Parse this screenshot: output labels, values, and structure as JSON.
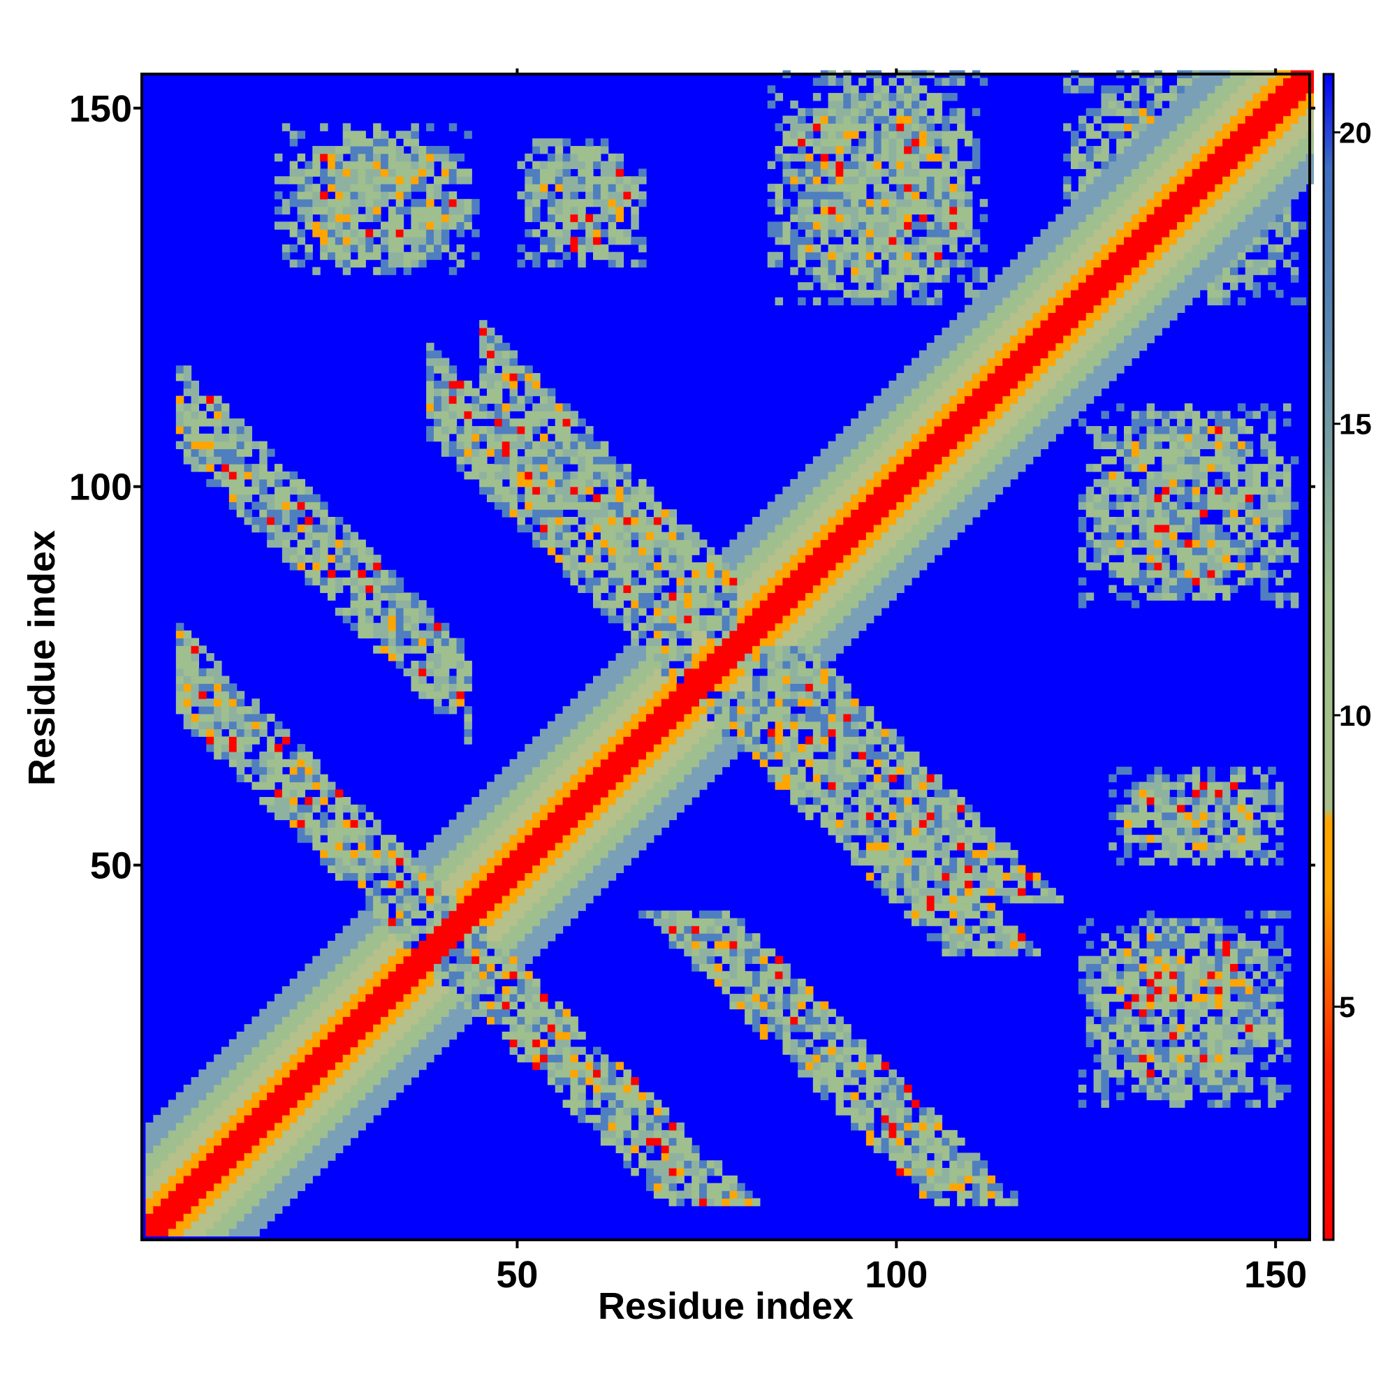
{
  "chart_data": {
    "type": "heatmap",
    "title": "",
    "xlabel": "Residue index",
    "ylabel": "Residue index",
    "xlim": [
      1,
      154
    ],
    "ylim": [
      1,
      154
    ],
    "n_residues": 154,
    "x_ticks": [
      50,
      100,
      150
    ],
    "y_ticks": [
      50,
      100,
      150
    ],
    "x_tick_labels": [
      "50",
      "100",
      "150"
    ],
    "y_tick_labels": [
      "50",
      "100",
      "150"
    ],
    "colorbar": {
      "range": [
        1,
        21
      ],
      "ticks": [
        5,
        10,
        15,
        20
      ],
      "tick_labels": [
        "5",
        "10",
        "15",
        "20"
      ],
      "colors": [
        "#ff0000",
        "#ffa500",
        "#9fbf8f",
        "#4f7fbf",
        "#0000ff"
      ]
    },
    "background_value": 21,
    "contact_bands": [
      {
        "kind": "diagonal",
        "start": 1,
        "end": 154,
        "width": 14
      },
      {
        "kind": "anti-parallel",
        "sum": 80,
        "from": 5,
        "to": 45,
        "width": 6
      },
      {
        "kind": "anti-parallel",
        "sum": 160,
        "from": 45,
        "to": 78,
        "width": 6
      },
      {
        "kind": "anti-parallel",
        "sum": 115,
        "from": 5,
        "to": 43,
        "width": 6
      },
      {
        "kind": "anti-parallel",
        "sum": 150,
        "from": 38,
        "to": 72,
        "width": 6
      },
      {
        "kind": "block",
        "x": [
          18,
          44
        ],
        "y": [
          128,
          147
        ]
      },
      {
        "kind": "block",
        "x": [
          50,
          66
        ],
        "y": [
          129,
          145
        ]
      },
      {
        "kind": "block",
        "x": [
          83,
          111
        ],
        "y": [
          124,
          154
        ]
      },
      {
        "kind": "block",
        "x": [
          122,
          153
        ],
        "y": [
          124,
          154
        ]
      },
      {
        "kind": "block",
        "x": [
          124,
          152
        ],
        "y": [
          84,
          110
        ]
      },
      {
        "kind": "block",
        "x": [
          128,
          150
        ],
        "y": [
          50,
          62
        ]
      },
      {
        "kind": "block",
        "x": [
          124,
          151
        ],
        "y": [
          18,
          43
        ]
      }
    ]
  }
}
